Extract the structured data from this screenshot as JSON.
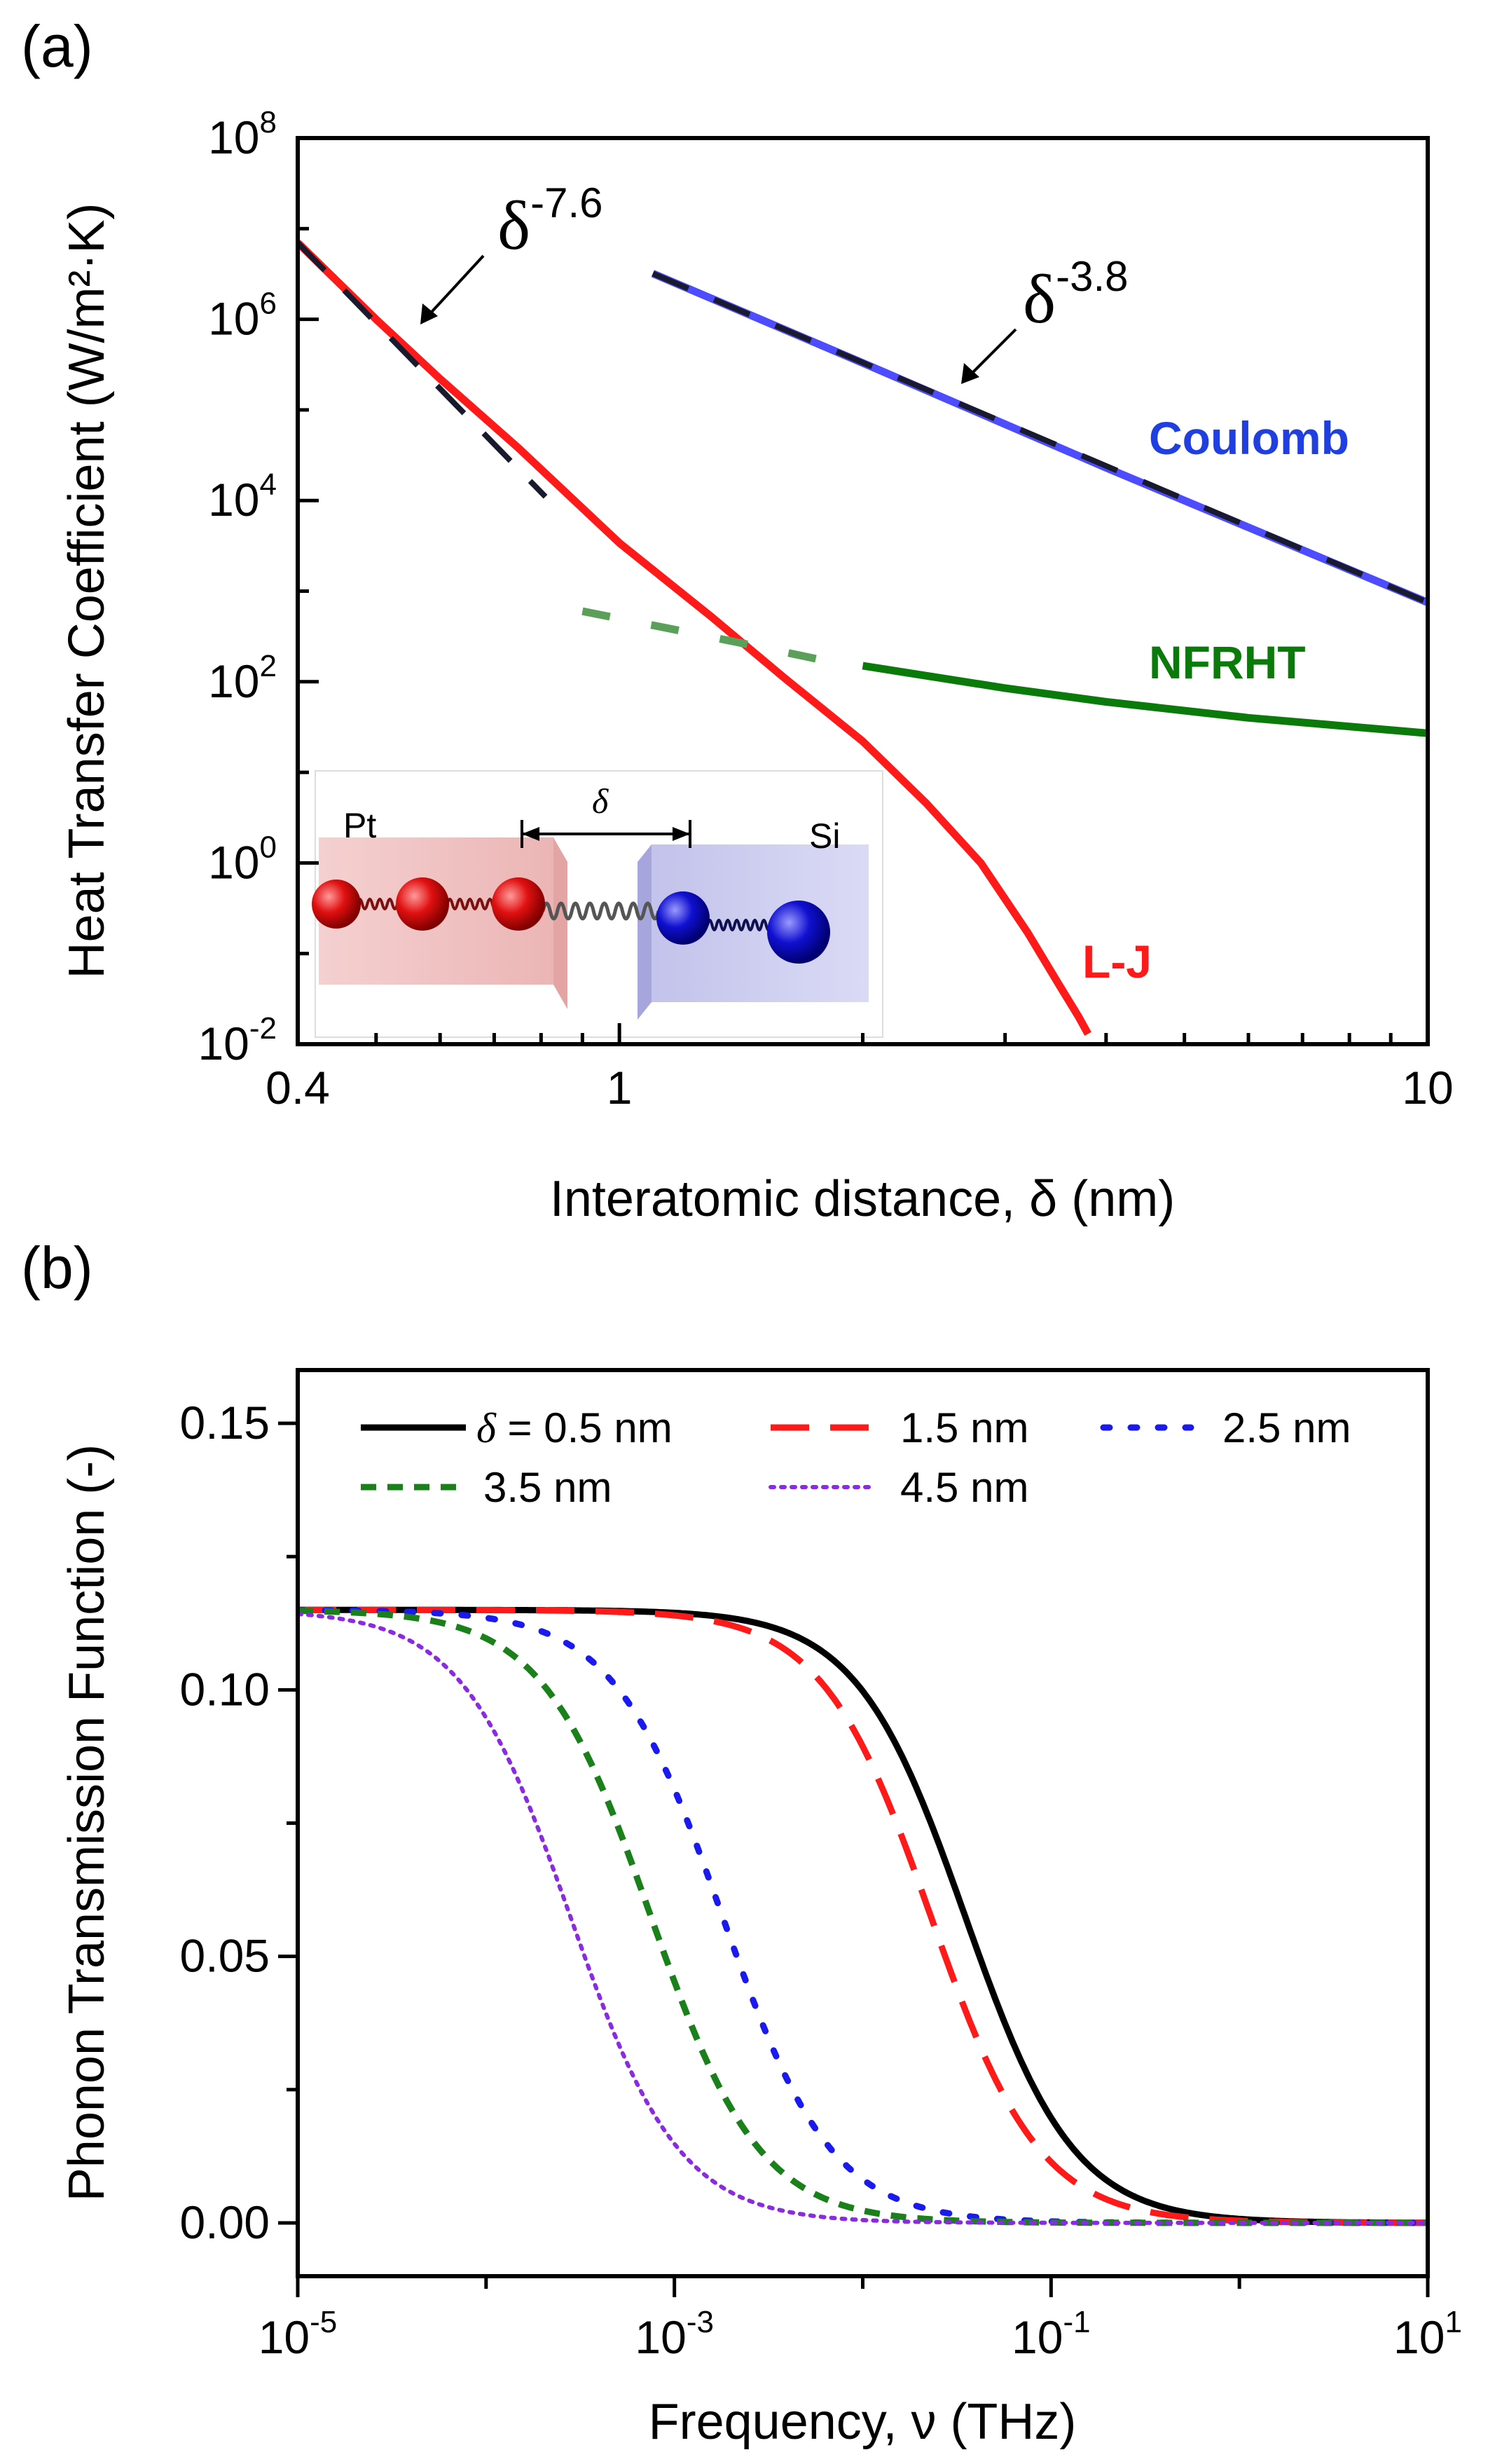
{
  "chart_data": [
    {
      "panel": "(a)",
      "type": "line",
      "xscale": "log",
      "yscale": "log",
      "xlabel": "Interatomic distance, δ (nm)",
      "ylabel": "Heat Transfer Coefficient (W/m²·K)",
      "xlim": [
        0.4,
        10
      ],
      "ylim": [
        0.01,
        100000000
      ],
      "x_ticks": [
        {
          "value": 0.4,
          "label": "0.4"
        },
        {
          "value": 1,
          "label": "1"
        },
        {
          "value": 10,
          "label": "10"
        }
      ],
      "y_ticks": [
        {
          "value": 0.01,
          "base": "10",
          "exp": "-2"
        },
        {
          "value": 1,
          "base": "10",
          "exp": "0"
        },
        {
          "value": 100,
          "base": "10",
          "exp": "2"
        },
        {
          "value": 10000,
          "base": "10",
          "exp": "4"
        },
        {
          "value": 1000000,
          "base": "10",
          "exp": "6"
        },
        {
          "value": 100000000,
          "base": "10",
          "exp": "8"
        }
      ],
      "series": [
        {
          "name": "L-J",
          "color": "#ff1a1a",
          "style": "solid",
          "x": [
            0.4,
            0.5,
            0.6,
            0.75,
            1.0,
            1.3,
            1.6,
            2.0,
            2.4,
            2.8,
            3.2,
            3.5,
            3.7,
            3.8
          ],
          "y": [
            7000000,
            1000000,
            220000,
            38000,
            3400,
            520,
            110,
            22,
            4.5,
            1.0,
            0.17,
            0.045,
            0.02,
            0.013
          ]
        },
        {
          "name": "Coulomb",
          "color": "#4d4dff",
          "style": "solid",
          "x": [
            1.1,
            2,
            4,
            10
          ],
          "y": [
            3200000,
            330000,
            23000,
            750
          ]
        },
        {
          "name": "NFRHT (dashed)",
          "color": "#5aa05a",
          "style": "dashed",
          "x": [
            0.9,
            1.2,
            1.5,
            1.8
          ],
          "y": [
            600,
            360,
            240,
            170
          ]
        },
        {
          "name": "NFRHT",
          "color": "#0a7a0a",
          "style": "solid",
          "x": [
            2.0,
            3.0,
            4.0,
            6.0,
            10.0
          ],
          "y": [
            150,
            85,
            60,
            40,
            27
          ]
        }
      ],
      "fits": [
        {
          "label_base": "δ",
          "label_exp": "-7.6",
          "x": [
            0.4,
            0.81
          ],
          "y": [
            7000000,
            11000
          ]
        },
        {
          "label_base": "δ",
          "label_exp": "-3.8",
          "x": [
            1.1,
            10
          ],
          "y": [
            3200000,
            750
          ]
        }
      ],
      "labels": {
        "coulomb": "Coulomb",
        "nfrht": "NFRHT",
        "lj": "L-J"
      },
      "inset": {
        "left_material": "Pt",
        "right_material": "Si",
        "gap_symbol": "δ"
      }
    },
    {
      "panel": "(b)",
      "type": "line",
      "xscale": "log",
      "yscale": "linear",
      "xlabel": "Frequency, ν (THz)",
      "ylabel": "Phonon Transmission Function (-)",
      "xlim": [
        1e-05,
        10
      ],
      "ylim": [
        -0.01,
        0.16
      ],
      "x_ticks": [
        {
          "value": 1e-05,
          "base": "10",
          "exp": "-5"
        },
        {
          "value": 0.001,
          "base": "10",
          "exp": "-3"
        },
        {
          "value": 0.1,
          "base": "10",
          "exp": "-1"
        },
        {
          "value": 10,
          "base": "10",
          "exp": "1"
        }
      ],
      "y_ticks": [
        {
          "value": 0.0,
          "label": "0.00"
        },
        {
          "value": 0.05,
          "label": "0.05"
        },
        {
          "value": 0.1,
          "label": "0.10"
        },
        {
          "value": 0.15,
          "label": "0.15"
        }
      ],
      "plateau": 0.115,
      "series": [
        {
          "name": "δ = 0.5 nm",
          "color": "#000000",
          "style": "solid",
          "half_freq": 0.035,
          "steepness": 1.5
        },
        {
          "name": "1.5 nm",
          "color": "#ff1a1a",
          "style": "longdash",
          "half_freq": 0.023,
          "steepness": 1.5
        },
        {
          "name": "2.5 nm",
          "color": "#1a1aee",
          "style": "dot",
          "half_freq": 0.0018,
          "steepness": 1.5
        },
        {
          "name": "3.5 nm",
          "color": "#1a801a",
          "style": "dash",
          "half_freq": 0.00075,
          "steepness": 1.5
        },
        {
          "name": "4.5 nm",
          "color": "#8a2be2",
          "style": "finedot",
          "half_freq": 0.00028,
          "steepness": 1.5
        }
      ],
      "legend": {
        "delta_symbol": "δ",
        "first_suffix": " = 0.5 nm",
        "entries": [
          "1.5 nm",
          "2.5 nm",
          "3.5 nm",
          "4.5 nm"
        ]
      }
    }
  ]
}
